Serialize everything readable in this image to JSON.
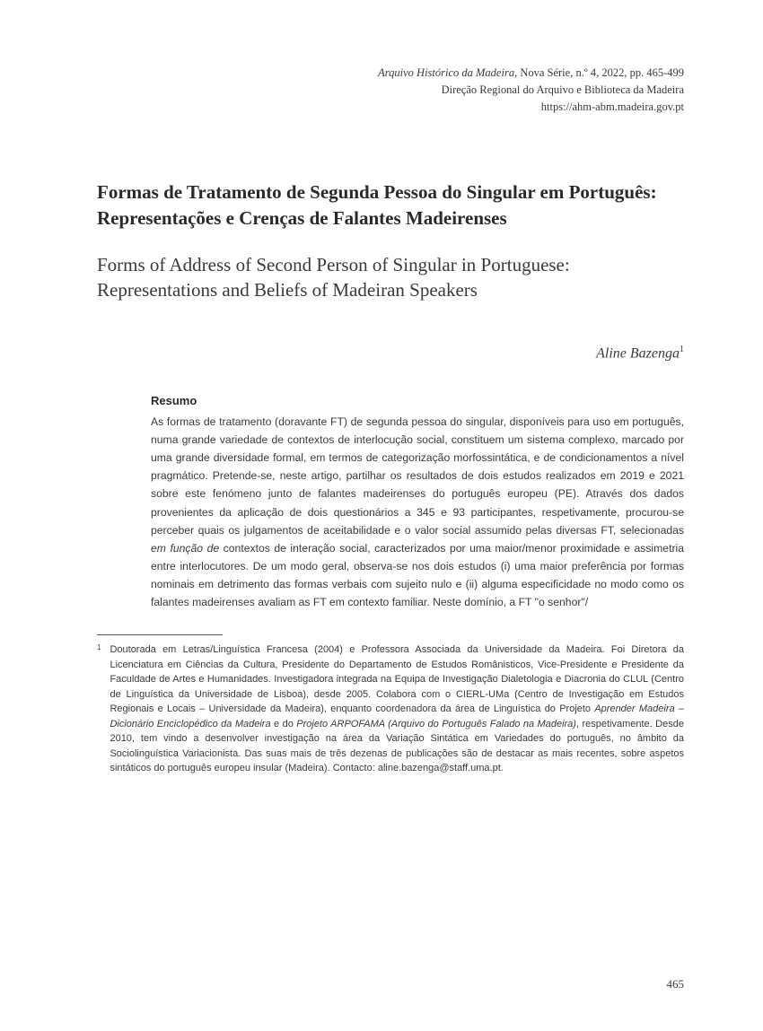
{
  "header": {
    "journal_italic": "Arquivo Histórico da Madeira",
    "journal_rest": ", Nova Série, n.º 4, 2022, pp. 465-499",
    "line2": "Direção Regional do Arquivo e Biblioteca da Madeira",
    "line3": "https://ahm-abm.madeira.gov.pt"
  },
  "title_pt": "Formas de Tratamento de Segunda Pessoa do Singular em Português: Representações e Crenças de Falantes Madeirenses",
  "title_en": "Forms of Address of Second Person of Singular in Portuguese: Representations and Beliefs of Madeiran Speakers",
  "author_name": "Aline Bazenga",
  "author_mark": "1",
  "resumo_heading": "Resumo",
  "resumo_p1a": "As formas de tratamento (doravante FT) de segunda pessoa do singular, disponíveis para uso em português, numa grande variedade de contextos de interlocução social, constituem um sistema complexo, marcado por uma grande diversidade formal, em termos de categorização morfossintática, e de condicionamentos a nível pragmático. Pretende-se, neste artigo, partilhar os resultados de dois estudos realizados em 2019 e 2021 sobre este fenómeno junto de falantes madeirenses do português europeu (PE). Através dos dados provenientes da aplicação de dois questionários a 345 e 93 participantes, respetivamente, procurou-se perceber quais os julgamentos de aceitabilidade e o valor social assumido pelas diversas FT, selecionadas ",
  "resumo_p1_it": "em função de",
  "resumo_p1b": " contextos de interação social, caracterizados por uma maior/menor proximidade e assimetria entre interlocutores. De um modo geral, observa-se nos dois estudos (i) uma maior preferência por formas nominais em detrimento das formas verbais com sujeito nulo e (ii) alguma especificidade no modo como os falantes madeirenses avaliam as FT em contexto familiar. Neste domínio, a FT \"o senhor\"/",
  "footnote": {
    "marker": "1",
    "t1": "Doutorada em Letras/Linguística Francesa (2004) e Professora Associada da Universidade da Madeira. Foi Diretora da Licenciatura em Ciências da Cultura, Presidente do Departamento de Estudos Românisticos, Vice-Presidente e Presidente da Faculdade de Artes e Humanidades. Investigadora integrada na Equipa de Investigação Dialetologia e Diacronia do CLUL (Centro de Linguística da Universidade de Lisboa), desde 2005. Colabora com o CIERL-UMa (Centro de Investigação em Estudos Regionais e Locais – Universidade da Madeira), enquanto coordenadora da área de Linguística do Projeto ",
    "it1": "Aprender Madeira – Dicionário Enciclopédico da Madeira",
    "t2": " e do ",
    "it2": "Projeto ARPOFAMA (Arquivo do Português Falado na Madeira)",
    "t3": ", respetivamente. Desde 2010, tem vindo a desenvolver investigação na área da Variação Sintática em Variedades do português, no âmbito da Sociolinguística Variacionista. Das suas mais de três dezenas de publicações são de destacar as mais recentes, sobre aspetos sintáticos do português europeu insular (Madeira). Contacto: aline.bazenga@staff.uma.pt."
  },
  "page_number": "465"
}
